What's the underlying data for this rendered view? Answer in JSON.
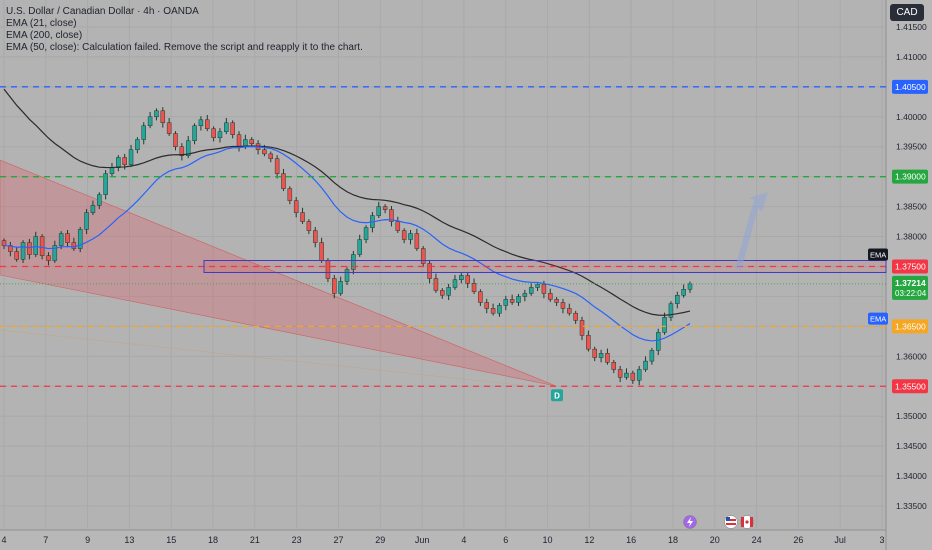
{
  "legend": {
    "title": "U.S. Dollar / Canadian Dollar · 4h · OANDA",
    "line1": "EMA (21, close)",
    "line2": "EMA (200, close)",
    "line3": "EMA (50, close): Calculation failed. Remove the script and reapply it to the chart."
  },
  "currency": "CAD",
  "colors": {
    "background": "#b3b3b3",
    "up": "#26a69a",
    "down": "#ef5350",
    "ema21": "#2962ff",
    "ema200": "#2b2b2b",
    "level_blue": "#2962ff",
    "level_green": "#26a641",
    "level_red": "#f23645",
    "level_orange": "#f5a623",
    "zone": "#f23645"
  },
  "icons": [
    "lightning-event-icon",
    "us-flag-icon",
    "canada-flag-icon"
  ],
  "chart_data": {
    "type": "candlestick",
    "symbol": "USDCAD",
    "timeframe": "4h",
    "x_ticks": [
      "4",
      "7",
      "9",
      "13",
      "15",
      "18",
      "21",
      "23",
      "27",
      "29",
      "Jun",
      "4",
      "6",
      "10",
      "12",
      "16",
      "18",
      "20",
      "24",
      "26",
      "Jul",
      "3"
    ],
    "y_ticks": [
      "1.41500",
      "1.41000",
      "1.40500",
      "1.40000",
      "1.39500",
      "1.39000",
      "1.38500",
      "1.38000",
      "1.37500",
      "1.37000",
      "1.36500",
      "1.36000",
      "1.35500",
      "1.35000",
      "1.34500",
      "1.34000",
      "1.33500"
    ],
    "ylim": [
      1.331,
      1.4195
    ],
    "levels": [
      {
        "price": 1.405,
        "label": "1.40500",
        "color": "#2962ff"
      },
      {
        "price": 1.39,
        "label": "1.39000",
        "color": "#26a641"
      },
      {
        "price": 1.375,
        "label": "1.37500",
        "color": "#f23645"
      },
      {
        "price": 1.365,
        "label": "1.36500",
        "color": "#f5a623"
      },
      {
        "price": 1.355,
        "label": "1.35500",
        "color": "#f23645"
      }
    ],
    "zone": {
      "top": 1.376,
      "bottom": 1.374,
      "color": "#f23645"
    },
    "current_price": {
      "label": "1.37214",
      "countdown": "03:22:04",
      "color": "#26a641"
    },
    "ema_tags": [
      {
        "label": "EMA",
        "price": 1.377
      },
      {
        "label": "EMA",
        "price": 1.3663
      }
    ],
    "pattern_marker": "D",
    "closes": [
      1.3785,
      1.3775,
      1.3762,
      1.379,
      1.377,
      1.38,
      1.3768,
      1.376,
      1.3785,
      1.3805,
      1.379,
      1.378,
      1.3812,
      1.384,
      1.3852,
      1.387,
      1.3905,
      1.3915,
      1.3932,
      1.392,
      1.3945,
      1.3962,
      1.3985,
      1.4,
      1.401,
      1.399,
      1.3972,
      1.395,
      1.3935,
      1.396,
      1.3985,
      1.3995,
      1.398,
      1.3965,
      1.3975,
      1.399,
      1.397,
      1.395,
      1.3962,
      1.3955,
      1.3945,
      1.3938,
      1.393,
      1.3905,
      1.388,
      1.386,
      1.384,
      1.3825,
      1.381,
      1.379,
      1.376,
      1.373,
      1.3705,
      1.3725,
      1.3745,
      1.377,
      1.3795,
      1.3815,
      1.3835,
      1.385,
      1.3845,
      1.3825,
      1.381,
      1.3795,
      1.3805,
      1.378,
      1.3755,
      1.373,
      1.371,
      1.3702,
      1.3715,
      1.3728,
      1.3735,
      1.3722,
      1.3708,
      1.369,
      1.368,
      1.3672,
      1.3685,
      1.3695,
      1.369,
      1.37,
      1.3705,
      1.3715,
      1.372,
      1.3705,
      1.3695,
      1.369,
      1.368,
      1.3672,
      1.366,
      1.3635,
      1.3612,
      1.3598,
      1.3605,
      1.359,
      1.3578,
      1.3565,
      1.3572,
      1.356,
      1.3578,
      1.3592,
      1.361,
      1.364,
      1.3665,
      1.3688,
      1.3702,
      1.3712,
      1.3721
    ]
  }
}
